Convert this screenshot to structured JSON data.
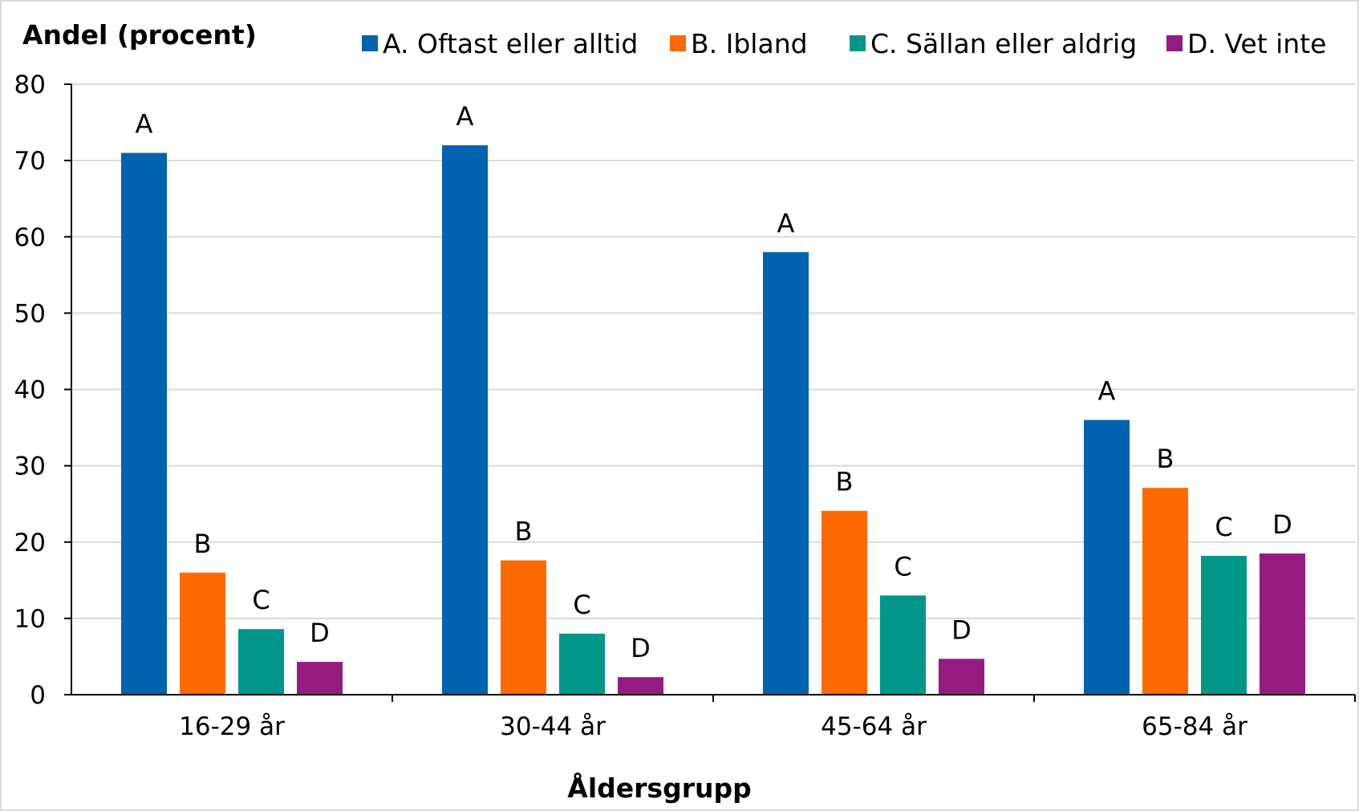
{
  "chart_data": {
    "type": "bar",
    "ylabel": "Andel (procent)",
    "xlabel": "Åldersgrupp",
    "ylim": [
      0,
      80
    ],
    "y_ticks": [
      "0",
      "10",
      "20",
      "30",
      "40",
      "50",
      "60",
      "70",
      "80"
    ],
    "grid": true,
    "legend_position": "top",
    "categories": [
      "16-29 år",
      "30-44 år",
      "45-64 år",
      "65-84 år"
    ],
    "series": [
      {
        "name": "A. Oftast eller alltid",
        "label": "A",
        "color": "#0063AF",
        "values": [
          71,
          72,
          58,
          36
        ]
      },
      {
        "name": "B. Ibland",
        "label": "B",
        "color": "#FF6A00",
        "values": [
          16,
          17.6,
          24.1,
          27.1
        ]
      },
      {
        "name": "C. Sällan eller aldrig",
        "label": "C",
        "color": "#00978A",
        "values": [
          8.6,
          8,
          13,
          18.2
        ]
      },
      {
        "name": "D. Vet inte",
        "label": "D",
        "color": "#951B81",
        "values": [
          4.3,
          2.3,
          4.7,
          18.5
        ]
      }
    ]
  }
}
